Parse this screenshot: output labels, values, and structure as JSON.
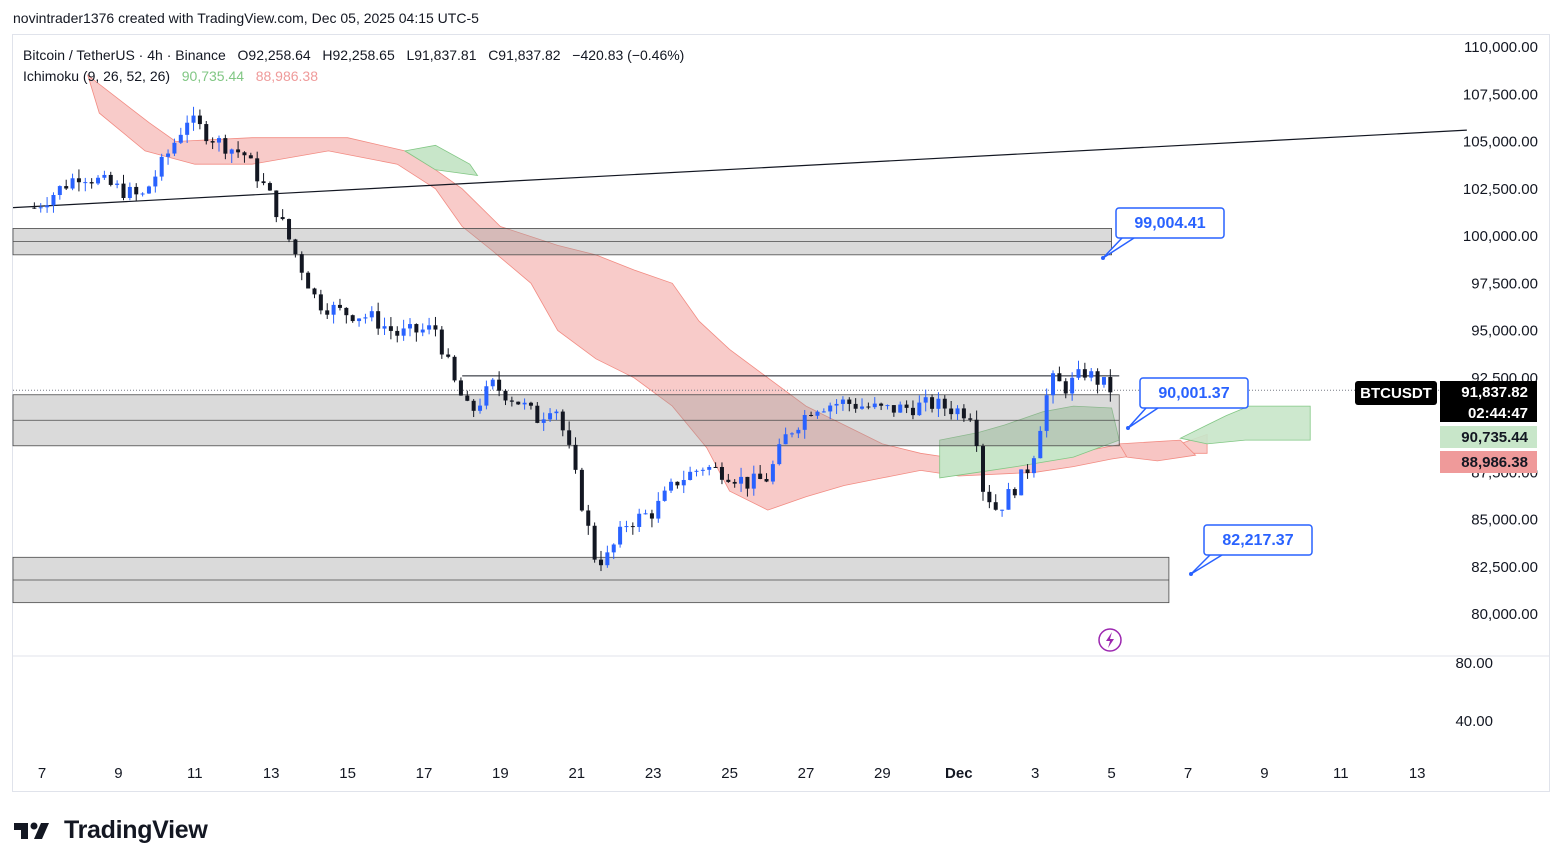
{
  "header": {
    "credit": "novintrader1376 created with TradingView.com, Dec 05, 2025 04:15 UTC-5"
  },
  "legend": {
    "symbol": "Bitcoin / TetherUS · 4h · Binance",
    "open": "O92,258.64",
    "high": "H92,258.65",
    "low": "L91,837.81",
    "close": "C91,837.82",
    "change": "−420.83 (−0.46%)",
    "indicator": "Ichimoku (9, 26, 52, 26)",
    "lead_a": "90,735.44",
    "lead_b": "88,986.38"
  },
  "chart_data": {
    "type": "candlestick",
    "symbol": "BTCUSDT",
    "interval": "4h",
    "ylim": [
      79000,
      110500
    ],
    "y_ticks": [
      "110,000.00",
      "107,500.00",
      "105,000.00",
      "102,500.00",
      "100,000.00",
      "97,500.00",
      "95,000.00",
      "92,500.00",
      "87,500.00",
      "85,000.00",
      "82,500.00",
      "80,000.00"
    ],
    "y_tick_values": [
      110000,
      107500,
      105000,
      102500,
      100000,
      97500,
      95000,
      92500,
      87500,
      85000,
      82500,
      80000
    ],
    "indicator_pane_ticks": [
      "80.00",
      "40.00"
    ],
    "x_ticks": [
      "7",
      "9",
      "11",
      "13",
      "15",
      "17",
      "19",
      "21",
      "23",
      "25",
      "27",
      "29",
      "Dec",
      "3",
      "5",
      "7",
      "9",
      "11",
      "13"
    ],
    "x_tick_days": [
      7,
      9,
      11,
      13,
      15,
      17,
      19,
      21,
      23,
      25,
      27,
      29,
      31,
      33,
      35,
      37,
      39,
      41,
      43
    ],
    "price_path": [
      [
        6.8,
        101.5
      ],
      [
        8,
        103.3
      ],
      [
        9,
        102.5
      ],
      [
        9.6,
        102.0
      ],
      [
        10.2,
        104.0
      ],
      [
        10.8,
        106.2
      ],
      [
        11.6,
        105.0
      ],
      [
        12.3,
        104.3
      ],
      [
        13.0,
        102.0
      ],
      [
        13.6,
        99.2
      ],
      [
        14.2,
        96.5
      ],
      [
        14.8,
        96.0
      ],
      [
        15.6,
        95.7
      ],
      [
        16.3,
        94.8
      ],
      [
        17.3,
        95.1
      ],
      [
        17.8,
        92.2
      ],
      [
        18.2,
        90.6
      ],
      [
        18.8,
        92.1
      ],
      [
        19.5,
        91.2
      ],
      [
        20.0,
        90.3
      ],
      [
        20.4,
        91.3
      ],
      [
        20.8,
        88.6
      ],
      [
        21.2,
        85.3
      ],
      [
        21.5,
        82.8
      ],
      [
        21.8,
        83.0
      ],
      [
        22.3,
        84.8
      ],
      [
        23.0,
        85.4
      ],
      [
        23.6,
        87.0
      ],
      [
        24.3,
        87.8
      ],
      [
        24.9,
        87.5
      ],
      [
        25.5,
        86.9
      ],
      [
        26.0,
        87.2
      ],
      [
        26.5,
        89.5
      ],
      [
        27.2,
        91.0
      ],
      [
        28.0,
        91.2
      ],
      [
        28.5,
        91.0
      ],
      [
        29.0,
        90.8
      ],
      [
        29.6,
        90.9
      ],
      [
        30.3,
        91.1
      ],
      [
        31.4,
        90.6
      ],
      [
        31.6,
        86.8
      ],
      [
        32.0,
        85.5
      ],
      [
        32.5,
        86.8
      ],
      [
        32.9,
        88.0
      ],
      [
        33.4,
        92.4
      ],
      [
        33.8,
        92.0
      ],
      [
        34.3,
        92.8
      ],
      [
        34.9,
        92.0
      ],
      [
        35.0,
        91.84
      ]
    ],
    "price_scale": 1000,
    "last_price": "91,837.82",
    "countdown": "02:44:47",
    "symbol_label": "BTCUSDT",
    "ichimoku_lead_a_value": "90,735.44",
    "ichimoku_lead_b_value": "88,986.38",
    "zones": [
      {
        "name": "resistance-zone-top",
        "from": 99004,
        "to": 100400,
        "start_day": 6.0,
        "end_day": 35.0
      },
      {
        "name": "mid-zone",
        "from": 88900,
        "to": 91600,
        "start_day": 6.0,
        "end_day": 35.2
      },
      {
        "name": "support-zone",
        "from": 80600,
        "to": 83000,
        "start_day": 6.0,
        "end_day": 36.5
      }
    ],
    "trendline": {
      "start": [
        6.0,
        101.5
      ],
      "end": [
        44.3,
        105.6
      ]
    },
    "horizontal_line": {
      "value": 92.6,
      "start_day": 18.0,
      "end_day": 35.2
    },
    "targets": [
      {
        "label": "99,004.41",
        "value": 99004.41
      },
      {
        "label": "90,001.37",
        "value": 90001.37
      },
      {
        "label": "82,217.37",
        "value": 82217.37
      }
    ]
  },
  "colors": {
    "up": "#2962ff",
    "down": "#131722",
    "cloud_red": "#f7c5c3",
    "cloud_green": "#c8e6c9",
    "callout": "#2962ff",
    "lead_a_bg": "#c8e6c9",
    "lead_b_bg": "#ef9a9a"
  },
  "brand": {
    "logo_text": "TradingView"
  }
}
